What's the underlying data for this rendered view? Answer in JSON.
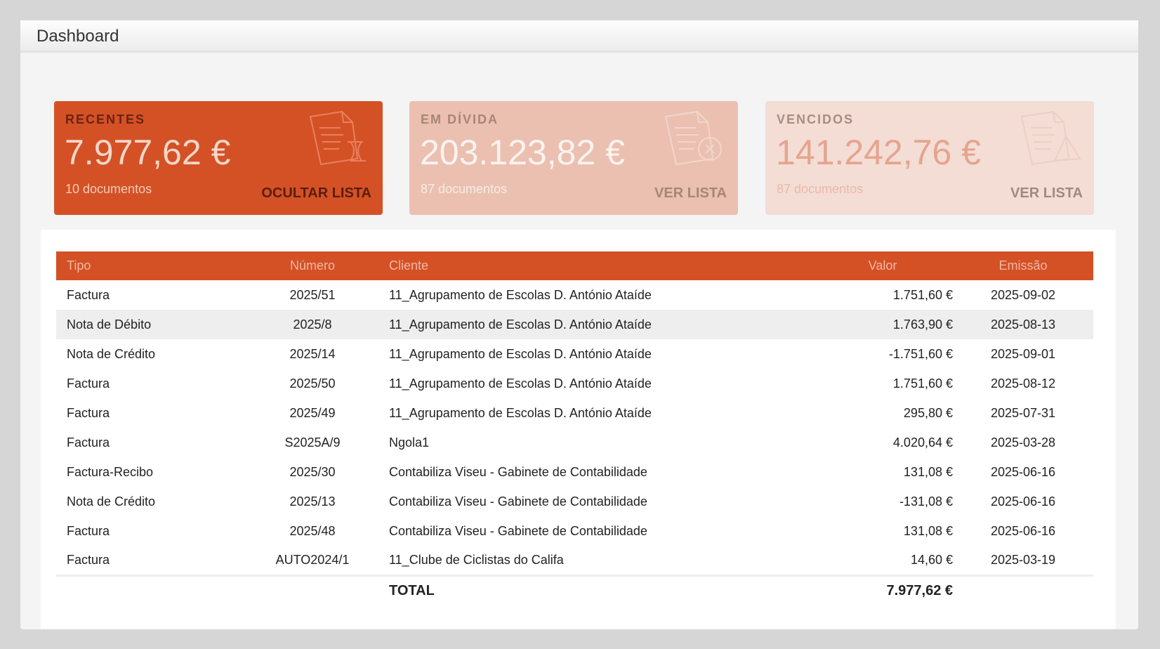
{
  "header": {
    "title": "Dashboard"
  },
  "cards": [
    {
      "label": "RECENTES",
      "amount": "7.977,62 €",
      "docs": "10 documentos",
      "action": "OCULTAR LISTA",
      "icon": "document-hourglass-icon"
    },
    {
      "label": "EM DÍVIDA",
      "amount": "203.123,82 €",
      "docs": "87 documentos",
      "action": "VER LISTA",
      "icon": "document-x-icon"
    },
    {
      "label": "VENCIDOS",
      "amount": "141.242,76 €",
      "docs": "87 documentos",
      "action": "VER LISTA",
      "icon": "document-warning-icon"
    }
  ],
  "table": {
    "headers": [
      "Tipo",
      "Número",
      "Cliente",
      "Valor",
      "Emissão"
    ],
    "rows": [
      [
        "Factura",
        "2025/51",
        "11_Agrupamento de Escolas D. António Ataíde",
        "1.751,60 €",
        "2025-09-02"
      ],
      [
        "Nota de Débito",
        "2025/8",
        "11_Agrupamento de Escolas D. António Ataíde",
        "1.763,90 €",
        "2025-08-13"
      ],
      [
        "Nota de Crédito",
        "2025/14",
        "11_Agrupamento de Escolas D. António Ataíde",
        "-1.751,60 €",
        "2025-09-01"
      ],
      [
        "Factura",
        "2025/50",
        "11_Agrupamento de Escolas D. António Ataíde",
        "1.751,60 €",
        "2025-08-12"
      ],
      [
        "Factura",
        "2025/49",
        "11_Agrupamento de Escolas D. António Ataíde",
        "295,80 €",
        "2025-07-31"
      ],
      [
        "Factura",
        "S2025A/9",
        "Ngola1",
        "4.020,64 €",
        "2025-03-28"
      ],
      [
        "Factura-Recibo",
        "2025/30",
        "Contabiliza Viseu - Gabinete de Contabilidade",
        "131,08 €",
        "2025-06-16"
      ],
      [
        "Nota de Crédito",
        "2025/13",
        "Contabiliza Viseu - Gabinete de Contabilidade",
        "-131,08 €",
        "2025-06-16"
      ],
      [
        "Factura",
        "2025/48",
        "Contabiliza Viseu - Gabinete de Contabilidade",
        "131,08 €",
        "2025-06-16"
      ],
      [
        "Factura",
        "AUTO2024/1",
        "11_Clube de Ciclistas do Califa",
        "14,60 €",
        "2025-03-19"
      ]
    ],
    "total_label": "TOTAL",
    "total_value": "7.977,62 €"
  }
}
